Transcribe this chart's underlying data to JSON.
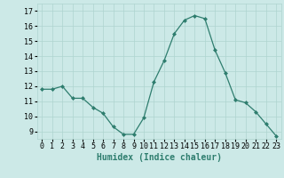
{
  "x": [
    0,
    1,
    2,
    3,
    4,
    5,
    6,
    7,
    8,
    9,
    10,
    11,
    12,
    13,
    14,
    15,
    16,
    17,
    18,
    19,
    20,
    21,
    22,
    23
  ],
  "y": [
    11.8,
    11.8,
    12.0,
    11.2,
    11.2,
    10.6,
    10.2,
    9.3,
    8.8,
    8.8,
    9.9,
    12.3,
    13.7,
    15.5,
    16.4,
    16.7,
    16.5,
    14.4,
    12.9,
    11.1,
    10.9,
    10.3,
    9.5,
    8.7
  ],
  "xlabel": "Humidex (Indice chaleur)",
  "xlim": [
    -0.5,
    23.5
  ],
  "ylim": [
    8.5,
    17.5
  ],
  "yticks": [
    9,
    10,
    11,
    12,
    13,
    14,
    15,
    16,
    17
  ],
  "xticks": [
    0,
    1,
    2,
    3,
    4,
    5,
    6,
    7,
    8,
    9,
    10,
    11,
    12,
    13,
    14,
    15,
    16,
    17,
    18,
    19,
    20,
    21,
    22,
    23
  ],
  "line_color": "#2e7d6e",
  "marker": "D",
  "marker_size": 2.0,
  "bg_color": "#cce9e7",
  "grid_color": "#aed4d0",
  "label_fontsize": 7,
  "tick_fontsize": 6
}
